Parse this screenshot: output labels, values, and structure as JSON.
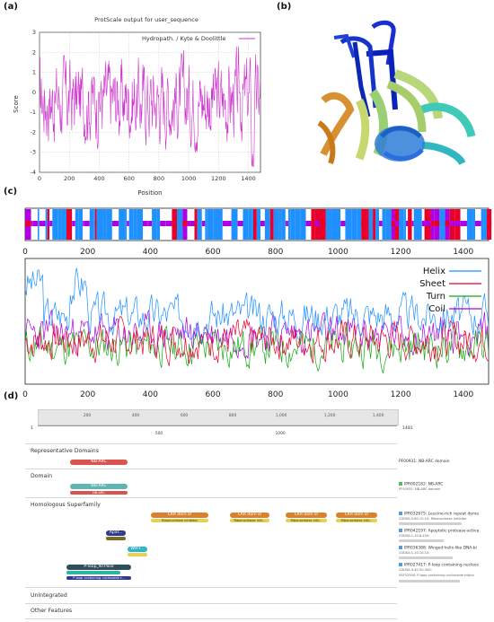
{
  "panels": {
    "a": "(a)",
    "b": "(b)",
    "c": "(c)",
    "d": "(d)"
  },
  "panel_a": {
    "title": "ProtScale output for user_sequence",
    "legend": "Hydropath. / Kyte & Doolittle",
    "ylabel": "Score",
    "xlabel": "Position",
    "xticks": [
      "0",
      "200",
      "400",
      "600",
      "800",
      "1000",
      "1200",
      "1400"
    ],
    "yticks": [
      "3",
      "2",
      "1",
      "0",
      "-1",
      "-2",
      "-3",
      "-4"
    ],
    "line_color": "#cc33cc"
  },
  "panel_c": {
    "xticks": [
      "0",
      "200",
      "400",
      "600",
      "800",
      "1000",
      "1200",
      "1400"
    ],
    "legend": [
      {
        "name": "Helix",
        "color": "#1e90ff"
      },
      {
        "name": "Sheet",
        "color": "#e8002a"
      },
      {
        "name": "Turn",
        "color": "#11aa11"
      },
      {
        "name": "Coil",
        "color": "#b000e0"
      }
    ]
  },
  "panel_d": {
    "ruler_ticks_top": [
      "200",
      "400",
      "600",
      "800",
      "1,000",
      "1,200",
      "1,400"
    ],
    "ruler_ticks_bottom": [
      "500",
      "1000"
    ],
    "ruler_start": "1",
    "ruler_end": "1481",
    "sections": {
      "rep": "Representative Domains",
      "domain": "Domain",
      "homologous": "Homologous Superfamily",
      "unintegrated": "Unintegrated",
      "other": "Other Features"
    },
    "bars": {
      "nbarc_rep": "NB-ARC",
      "nbarc_dom1": "NB-ARC",
      "nbarc_dom2": "NB-ARC",
      "lrr": "LRR dom sf",
      "ribo": "Ribonuclease inhibitor",
      "ribo_short": "Ribonuclease inhi...",
      "apaf": "Apaf...",
      "wh": "WH-l...",
      "ploop": "P-loop_NTPase",
      "ploop_sub": "P-loop containing nucleoside t..."
    },
    "right": {
      "rep": "PF00931: NB-ARC domain",
      "dom1": "IPR002182: NB-ARC",
      "dom2": "PF00931: NB-ARC domain",
      "h1": "IPR032675: Leucine-rich repeat doma",
      "h1s": "G3DSA:3.80.10.10: Ribonuclease Inhibitor",
      "h2": "IPR042197: Apoptotic protease-activa",
      "h2s": "G3DSA:1.10.8.430:",
      "h3": "IPR036388: Winged helix-like DNA-bi",
      "h3s": "G3DSA:1.10.10.10:",
      "h4": "IPR027417: P-loop containing nucleos",
      "h4s1": "G3DSA:3.40.50.300:",
      "h4s2": "SSF52540: P-loop containing nucleoside tripho"
    },
    "colors": {
      "nbarc": "#d9534f",
      "teal": "#5bb7b0",
      "orange": "#d9822b",
      "yellow": "#e3d25a",
      "navy": "#2e3a8c",
      "olive": "#7a6a2a",
      "cyan": "#30b3c8",
      "dark": "#2f4f5f",
      "green_badge": "#5cb85c",
      "blue_badge": "#5b9bd5"
    }
  }
}
